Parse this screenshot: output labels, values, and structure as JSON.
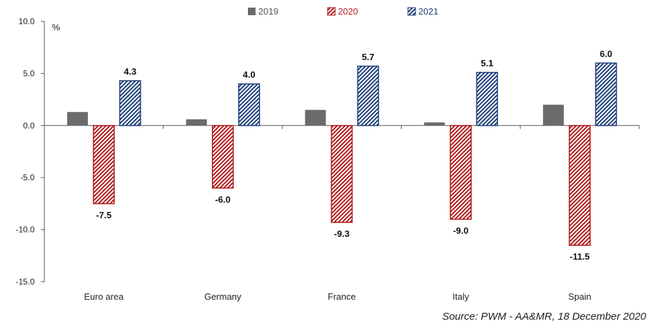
{
  "chart_data": {
    "type": "bar",
    "categories": [
      "Euro area",
      "Germany",
      "France",
      "Italy",
      "Spain"
    ],
    "series": [
      {
        "name": "2019",
        "values": [
          1.3,
          0.6,
          1.5,
          0.3,
          2.0
        ],
        "color": "#6b6b6b",
        "pattern": "solid",
        "show_labels": false
      },
      {
        "name": "2020",
        "values": [
          -7.5,
          -6.0,
          -9.3,
          -9.0,
          -11.5
        ],
        "color": "#b01c1c",
        "pattern": "hatched",
        "show_labels": true
      },
      {
        "name": "2021",
        "values": [
          4.3,
          4.0,
          5.7,
          5.1,
          6.0
        ],
        "color": "#1f3f7a",
        "pattern": "hatched",
        "show_labels": true
      }
    ],
    "ylim": [
      -15,
      10
    ],
    "yticks": [
      "10.0",
      "5.0",
      "0.0",
      "-5.0",
      "-10.0",
      "-15.0"
    ],
    "yunit": "%",
    "legend_position": "top-center",
    "grid": false
  },
  "source": "Source: PWM - AA&MR, 18 December 2020"
}
